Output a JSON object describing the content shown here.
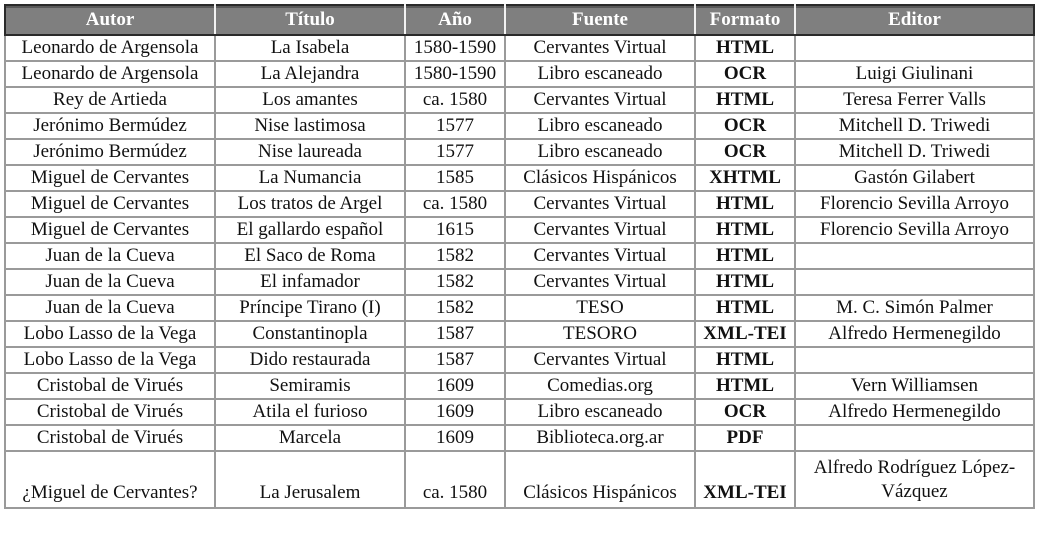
{
  "headers": [
    "Autor",
    "Título",
    "Año",
    "Fuente",
    "Formato",
    "Editor"
  ],
  "rows": [
    [
      "Leonardo de Argensola",
      "La Isabela",
      "1580-1590",
      "Cervantes Virtual",
      "HTML",
      ""
    ],
    [
      "Leonardo de Argensola",
      "La Alejandra",
      "1580-1590",
      "Libro escaneado",
      "OCR",
      "Luigi Giulinani"
    ],
    [
      "Rey de Artieda",
      "Los amantes",
      "ca. 1580",
      "Cervantes Virtual",
      "HTML",
      "Teresa Ferrer Valls"
    ],
    [
      "Jerónimo Bermúdez",
      "Nise lastimosa",
      "1577",
      "Libro escaneado",
      "OCR",
      "Mitchell D. Triwedi"
    ],
    [
      "Jerónimo Bermúdez",
      "Nise laureada",
      "1577",
      "Libro escaneado",
      "OCR",
      "Mitchell D. Triwedi"
    ],
    [
      "Miguel de Cervantes",
      "La Numancia",
      "1585",
      "Clásicos Hispánicos",
      "XHTML",
      "Gastón Gilabert"
    ],
    [
      "Miguel de Cervantes",
      "Los tratos de Argel",
      "ca. 1580",
      "Cervantes Virtual",
      "HTML",
      "Florencio Sevilla Arroyo"
    ],
    [
      "Miguel de Cervantes",
      "El gallardo español",
      "1615",
      "Cervantes Virtual",
      "HTML",
      "Florencio Sevilla Arroyo"
    ],
    [
      "Juan de la Cueva",
      "El Saco de Roma",
      "1582",
      "Cervantes Virtual",
      "HTML",
      ""
    ],
    [
      "Juan de la Cueva",
      "El infamador",
      "1582",
      "Cervantes Virtual",
      "HTML",
      ""
    ],
    [
      "Juan de la Cueva",
      "Príncipe Tirano (I)",
      "1582",
      "TESO",
      "HTML",
      "M. C. Simón Palmer"
    ],
    [
      "Lobo Lasso de la Vega",
      "Constantinopla",
      "1587",
      "TESORO",
      "XML-TEI",
      "Alfredo Hermenegildo"
    ],
    [
      "Lobo Lasso de la Vega",
      "Dido restaurada",
      "1587",
      "Cervantes Virtual",
      "HTML",
      ""
    ],
    [
      "Cristobal de Virués",
      "Semiramis",
      "1609",
      "Comedias.org",
      "HTML",
      "Vern Williamsen"
    ],
    [
      "Cristobal de Virués",
      "Atila el furioso",
      "1609",
      "Libro escaneado",
      "OCR",
      "Alfredo Hermenegildo"
    ],
    [
      "Cristobal de Virués",
      "Marcela",
      "1609",
      "Biblioteca.org.ar",
      "PDF",
      ""
    ],
    [
      "¿Miguel de Cervantes?",
      "La Jerusalem",
      "ca. 1580",
      "Clásicos Hispánicos",
      "XML-TEI",
      "Alfredo Rodríguez López-Vázquez"
    ]
  ]
}
